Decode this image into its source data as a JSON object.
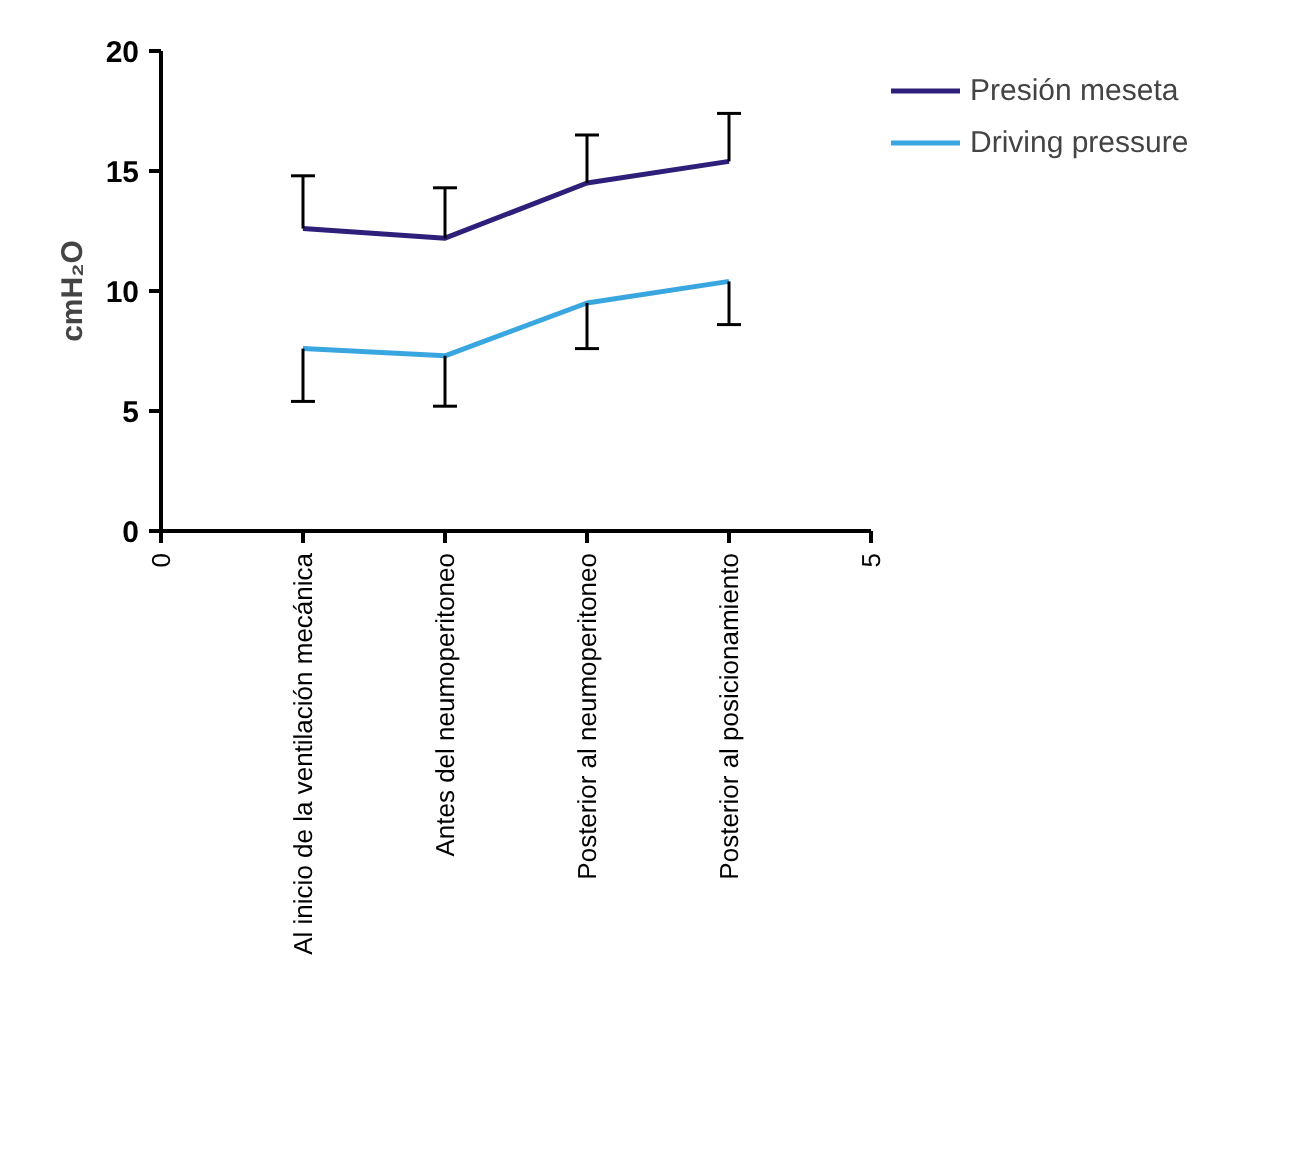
{
  "chart_data": {
    "type": "line",
    "ylabel": "cmH₂O",
    "x": [
      1,
      2,
      3,
      4
    ],
    "xlim": [
      0,
      5
    ],
    "xticks": [
      0,
      {
        "value": 1,
        "label": "Al inicio de la ventilación mecánica"
      },
      {
        "value": 2,
        "label": "Antes del neumoperitoneo"
      },
      {
        "value": 3,
        "label": "Posterior al neumoperitoneo"
      },
      {
        "value": 4,
        "label": "Posterior al posicionamiento"
      },
      5
    ],
    "ylim": [
      0,
      20
    ],
    "yticks": [
      0,
      5,
      10,
      15,
      20
    ],
    "series": [
      {
        "name": "Presión meseta",
        "color": "#2e1f7a",
        "values": [
          12.6,
          12.2,
          14.5,
          15.4
        ],
        "errors": [
          [
            12.6,
            14.8
          ],
          [
            12.2,
            14.3
          ],
          [
            14.5,
            16.5
          ],
          [
            15.4,
            17.4
          ]
        ]
      },
      {
        "name": "Driving pressure",
        "color": "#3aa6e0",
        "values": [
          7.6,
          7.3,
          9.5,
          10.4
        ],
        "errors": [
          [
            5.4,
            7.6
          ],
          [
            5.2,
            7.3
          ],
          [
            7.6,
            9.5
          ],
          [
            8.6,
            10.4
          ]
        ]
      }
    ],
    "legend": "top right",
    "grid": false,
    "marker": "none",
    "line_style": "solid"
  }
}
